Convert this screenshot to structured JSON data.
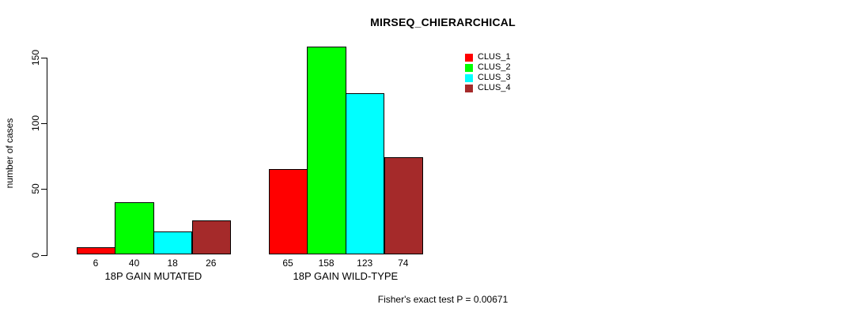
{
  "chart_data": {
    "type": "bar",
    "title": "MIRSEQ_CHIERARCHICAL",
    "ylabel": "number of cases",
    "xlabel": "",
    "yticks": [
      0,
      50,
      100,
      150
    ],
    "ylim": [
      0,
      160
    ],
    "grid": false,
    "legend_position": "top-right",
    "categories": [
      "18P GAIN MUTATED",
      "18P GAIN WILD-TYPE"
    ],
    "groups": [
      {
        "label": "18P GAIN MUTATED",
        "values": [
          6,
          40,
          18,
          26
        ]
      },
      {
        "label": "18P GAIN WILD-TYPE",
        "values": [
          65,
          158,
          123,
          74
        ]
      }
    ],
    "series": [
      {
        "name": "CLUS_1",
        "color": "#FF0000"
      },
      {
        "name": "CLUS_2",
        "color": "#00FF00"
      },
      {
        "name": "CLUS_3",
        "color": "#00FFFF"
      },
      {
        "name": "CLUS_4",
        "color": "#A52A2A"
      }
    ],
    "footnote": "Fisher's exact test P = 0.00671",
    "colors": {
      "background": "#FFFFFF",
      "axis": "#000000",
      "bar_border": "#000000",
      "text": "#000000"
    }
  }
}
